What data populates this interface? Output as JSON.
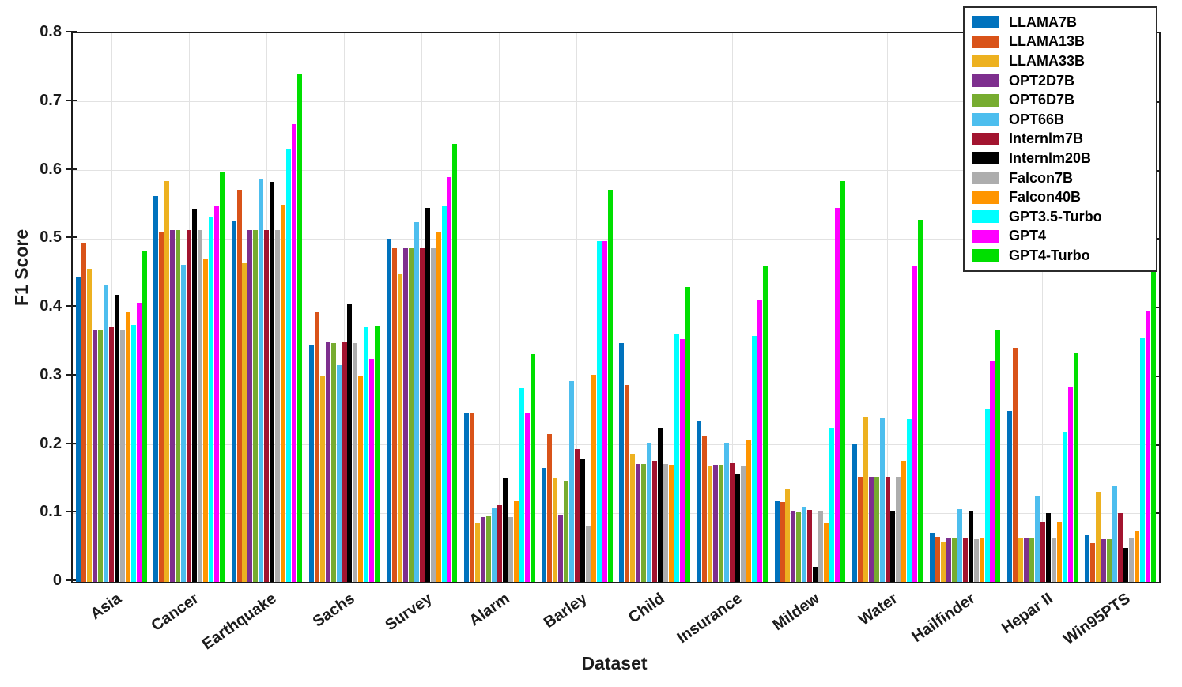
{
  "figure": {
    "xlabel": "Dataset",
    "ylabel": "F1 Score"
  },
  "chart_data": {
    "type": "bar",
    "title": "",
    "xlabel": "Dataset",
    "ylabel": "F1 Score",
    "ylim": [
      0,
      0.8
    ],
    "yticks": [
      0,
      0.1,
      0.2,
      0.3,
      0.4,
      0.5,
      0.6,
      0.7,
      0.8
    ],
    "ytick_labels": [
      "0",
      "0.1",
      "0.2",
      "0.3",
      "0.4",
      "0.5",
      "0.6",
      "0.7",
      "0.8"
    ],
    "grid": true,
    "legend_position": "top-right",
    "categories": [
      "Asia",
      "Cancer",
      "Earthquake",
      "Sachs",
      "Survey",
      "Alarm",
      "Barley",
      "Child",
      "Insurance",
      "Mildew",
      "Water",
      "Hailfinder",
      "Hepar II",
      "Win95PTS"
    ],
    "series": [
      {
        "name": "LLAMA7B",
        "color": "#0072BD",
        "values": [
          0.445,
          0.563,
          0.527,
          0.345,
          0.5,
          0.245,
          0.166,
          0.348,
          0.235,
          0.118,
          0.2,
          0.071,
          0.249,
          0.068
        ]
      },
      {
        "name": "LLAMA13B",
        "color": "#D95319",
        "values": [
          0.495,
          0.51,
          0.572,
          0.393,
          0.487,
          0.247,
          0.216,
          0.287,
          0.212,
          0.117,
          0.153,
          0.066,
          0.341,
          0.056
        ]
      },
      {
        "name": "LLAMA33B",
        "color": "#EDB120",
        "values": [
          0.456,
          0.585,
          0.465,
          0.301,
          0.45,
          0.085,
          0.152,
          0.187,
          0.17,
          0.135,
          0.241,
          0.058,
          0.065,
          0.131
        ]
      },
      {
        "name": "OPT2D7B",
        "color": "#7E2F8E",
        "values": [
          0.367,
          0.513,
          0.513,
          0.35,
          0.487,
          0.094,
          0.097,
          0.172,
          0.171,
          0.103,
          0.153,
          0.063,
          0.064,
          0.062
        ]
      },
      {
        "name": "OPT6D7B",
        "color": "#77AC30",
        "values": [
          0.366,
          0.513,
          0.513,
          0.348,
          0.487,
          0.096,
          0.148,
          0.172,
          0.171,
          0.102,
          0.153,
          0.063,
          0.064,
          0.062
        ]
      },
      {
        "name": "OPT66B",
        "color": "#4DBEEE",
        "values": [
          0.432,
          0.462,
          0.588,
          0.316,
          0.525,
          0.108,
          0.293,
          0.203,
          0.203,
          0.11,
          0.239,
          0.106,
          0.125,
          0.14
        ]
      },
      {
        "name": "Internlm7B",
        "color": "#A2142F",
        "values": [
          0.371,
          0.513,
          0.513,
          0.35,
          0.487,
          0.112,
          0.194,
          0.176,
          0.173,
          0.105,
          0.153,
          0.063,
          0.088,
          0.1
        ]
      },
      {
        "name": "Internlm20B",
        "color": "#000000",
        "values": [
          0.418,
          0.543,
          0.583,
          0.405,
          0.545,
          0.152,
          0.179,
          0.224,
          0.158,
          0.022,
          0.104,
          0.103,
          0.1,
          0.05
        ]
      },
      {
        "name": "Falcon7B",
        "color": "#ADADAD",
        "values": [
          0.366,
          0.513,
          0.513,
          0.348,
          0.487,
          0.094,
          0.082,
          0.172,
          0.17,
          0.103,
          0.153,
          0.062,
          0.064,
          0.064
        ]
      },
      {
        "name": "Falcon40B",
        "color": "#FF9500",
        "values": [
          0.393,
          0.471,
          0.55,
          0.301,
          0.511,
          0.118,
          0.302,
          0.171,
          0.206,
          0.085,
          0.176,
          0.065,
          0.088,
          0.074
        ]
      },
      {
        "name": "GPT3.5-Turbo",
        "color": "#00FFFF",
        "values": [
          0.375,
          0.532,
          0.632,
          0.372,
          0.548,
          0.282,
          0.497,
          0.361,
          0.358,
          0.225,
          0.238,
          0.252,
          0.218,
          0.356
        ]
      },
      {
        "name": "GPT4",
        "color": "#FF00FF",
        "values": [
          0.407,
          0.547,
          0.667,
          0.325,
          0.59,
          0.246,
          0.497,
          0.354,
          0.41,
          0.545,
          0.461,
          0.322,
          0.284,
          0.395
        ]
      },
      {
        "name": "GPT4-Turbo",
        "color": "#00DF00",
        "values": [
          0.483,
          0.597,
          0.74,
          0.374,
          0.639,
          0.332,
          0.572,
          0.43,
          0.46,
          0.584,
          0.528,
          0.366,
          0.333,
          0.487
        ]
      }
    ]
  }
}
